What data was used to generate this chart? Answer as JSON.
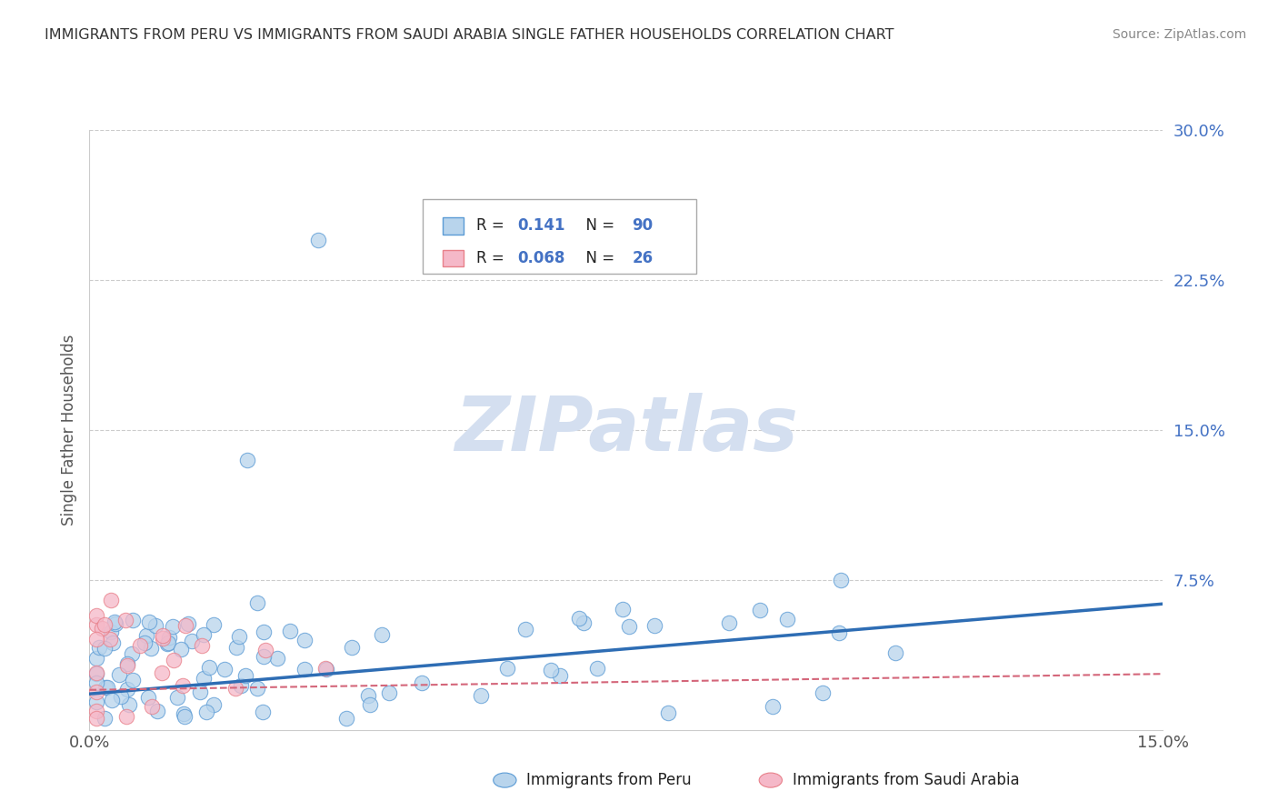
{
  "title": "IMMIGRANTS FROM PERU VS IMMIGRANTS FROM SAUDI ARABIA SINGLE FATHER HOUSEHOLDS CORRELATION CHART",
  "source": "Source: ZipAtlas.com",
  "ylabel": "Single Father Households",
  "x_min": 0.0,
  "x_max": 0.15,
  "y_min": 0.0,
  "y_max": 0.3,
  "yticks": [
    0.0,
    0.075,
    0.15,
    0.225,
    0.3
  ],
  "ytick_labels": [
    "",
    "7.5%",
    "15.0%",
    "22.5%",
    "30.0%"
  ],
  "xtick_labels": [
    "0.0%",
    "15.0%"
  ],
  "peru_color": "#b8d4ec",
  "saudi_color": "#f5b8c8",
  "peru_edge_color": "#5b9bd5",
  "saudi_edge_color": "#e8808a",
  "peru_line_color": "#2e6db4",
  "saudi_line_color": "#d4667a",
  "watermark_color": "#d4dff0",
  "background_color": "#ffffff",
  "grid_color": "#cccccc",
  "r_value_color": "#4472c4",
  "text_black": "#222222",
  "title_color": "#333333",
  "source_color": "#888888",
  "ylabel_color": "#555555",
  "tick_color": "#555555",
  "legend_r1_label": "R = ",
  "legend_r1_val": "0.141",
  "legend_r1_n_label": "N = ",
  "legend_r1_n_val": "90",
  "legend_r2_label": "R = ",
  "legend_r2_val": "0.068",
  "legend_r2_n_label": "N = ",
  "legend_r2_n_val": "26",
  "bottom_legend1": "Immigrants from Peru",
  "bottom_legend2": "Immigrants from Saudi Arabia",
  "watermark": "ZIPatlas",
  "peru_trend_x0": 0.0,
  "peru_trend_y0": 0.018,
  "peru_trend_x1": 0.15,
  "peru_trend_y1": 0.063,
  "saudi_trend_x0": 0.0,
  "saudi_trend_y0": 0.02,
  "saudi_trend_x1": 0.15,
  "saudi_trend_y1": 0.028
}
